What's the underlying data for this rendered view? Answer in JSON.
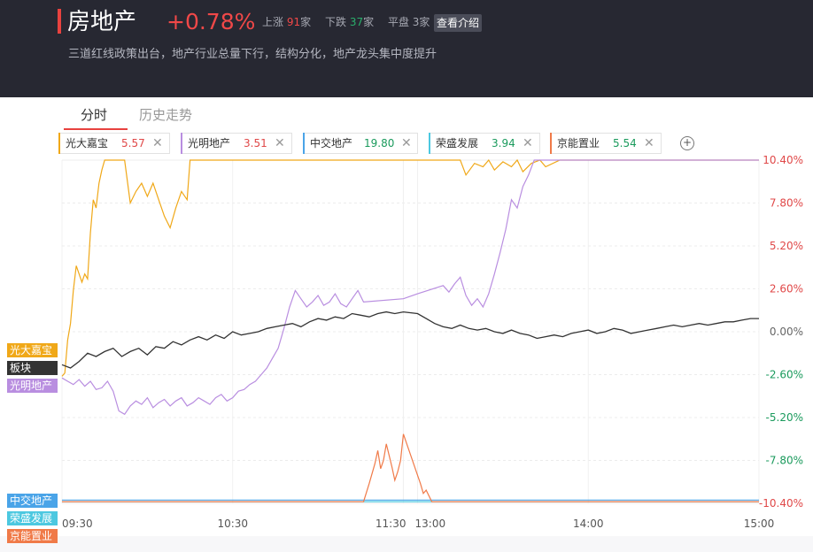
{
  "header": {
    "title": "房地产",
    "change": "+0.78%",
    "up_label": "上涨",
    "up_count": "91",
    "down_label": "下跌",
    "down_count": "37",
    "flat_label": "平盘",
    "flat_count": "3",
    "unit": "家",
    "intro_button": "查看介绍",
    "description": "三道红线政策出台，地产行业总量下行，结构分化，地产龙头集中度提升"
  },
  "tabs": [
    {
      "label": "分时",
      "active": true
    },
    {
      "label": "历史走势",
      "active": false
    }
  ],
  "stocks": [
    {
      "name": "光大嘉宝",
      "value": "5.57",
      "color": "#f0a818",
      "value_color": "#e04848"
    },
    {
      "name": "光明地产",
      "value": "3.51",
      "color": "#b98ee0",
      "value_color": "#e04848"
    },
    {
      "name": "中交地产",
      "value": "19.80",
      "color": "#4aa4e8",
      "value_color": "#1a9a5c"
    },
    {
      "name": "荣盛发展",
      "value": "3.94",
      "color": "#4cc8e0",
      "value_color": "#1a9a5c"
    },
    {
      "name": "京能置业",
      "value": "5.54",
      "color": "#f07a48",
      "value_color": "#1a9a5c"
    }
  ],
  "icons": {
    "close": "close-icon",
    "add": "add-circle-icon"
  },
  "left_tags": [
    {
      "label": "光大嘉宝",
      "color": "#f0a818",
      "y": -1.5
    },
    {
      "label": "板块",
      "color": "#333333",
      "y": -2.9
    },
    {
      "label": "光明地产",
      "color": "#b98ee0",
      "y": -4.2
    },
    {
      "label": "中交地产",
      "color": "#4aa4e8",
      "y": -9.75
    },
    {
      "label": "荣盛发展",
      "color": "#4cc8e0",
      "y": -11.5
    },
    {
      "label": "京能置业",
      "color": "#f07a48",
      "y": -13.2
    }
  ],
  "chart_data": {
    "type": "line",
    "ylim": [
      -10.4,
      10.4
    ],
    "y_ticks": [
      {
        "value": 10.4,
        "label": "10.40%",
        "color": "#e04848"
      },
      {
        "value": 7.8,
        "label": "7.80%",
        "color": "#e04848"
      },
      {
        "value": 5.2,
        "label": "5.20%",
        "color": "#e04848"
      },
      {
        "value": 2.6,
        "label": "2.60%",
        "color": "#e04848"
      },
      {
        "value": 0,
        "label": "0.00%",
        "color": "#666666"
      },
      {
        "value": -2.6,
        "label": "-2.60%",
        "color": "#1a9a5c"
      },
      {
        "value": -5.2,
        "label": "-5.20%",
        "color": "#1a9a5c"
      },
      {
        "value": -7.8,
        "label": "-7.80%",
        "color": "#1a9a5c"
      },
      {
        "value": -10.4,
        "label": "-10.40%",
        "color": "#e04848"
      }
    ],
    "x_ticks": [
      {
        "t": 0,
        "label": "09:30"
      },
      {
        "t": 60,
        "label": "10:30"
      },
      {
        "t": 120,
        "label": "11:30"
      },
      {
        "t": 125,
        "label": "13:00"
      },
      {
        "t": 185,
        "label": "14:00"
      },
      {
        "t": 245,
        "label": "15:00"
      }
    ],
    "xlim": [
      0,
      245
    ],
    "series": [
      {
        "name": "光大嘉宝",
        "color": "#f0a818",
        "x": [
          0,
          1,
          2,
          3,
          4,
          5,
          6,
          7,
          8,
          9,
          10,
          11,
          12,
          13,
          14,
          15,
          16,
          17,
          18,
          19,
          20,
          22,
          24,
          26,
          28,
          30,
          32,
          34,
          36,
          38,
          40,
          42,
          44,
          45,
          60,
          100,
          120,
          125,
          140,
          142,
          145,
          148,
          150,
          152,
          155,
          158,
          160,
          162,
          165,
          168,
          170,
          175,
          180,
          185,
          190,
          200,
          245
        ],
        "y": [
          -2.7,
          -2.5,
          -0.5,
          0.5,
          2.5,
          4.0,
          3.5,
          3.0,
          3.5,
          3.2,
          6.0,
          8.0,
          7.5,
          9.0,
          9.8,
          10.4,
          10.4,
          10.4,
          10.4,
          10.4,
          10.4,
          10.4,
          7.8,
          8.5,
          9.0,
          8.2,
          9.0,
          8.0,
          7.0,
          6.3,
          7.5,
          8.5,
          8.0,
          10.4,
          10.4,
          10.4,
          10.4,
          10.4,
          10.4,
          9.5,
          10.2,
          10.0,
          10.4,
          9.8,
          10.3,
          10.0,
          10.4,
          9.7,
          10.2,
          10.4,
          10.0,
          10.4,
          10.4,
          10.4,
          10.4,
          10.4,
          10.4
        ]
      },
      {
        "name": "光明地产",
        "color": "#b98ee0",
        "x": [
          0,
          2,
          4,
          6,
          8,
          10,
          12,
          14,
          16,
          18,
          20,
          22,
          24,
          26,
          28,
          30,
          32,
          34,
          36,
          38,
          40,
          42,
          44,
          46,
          48,
          50,
          52,
          54,
          56,
          58,
          60,
          62,
          64,
          66,
          68,
          70,
          72,
          74,
          76,
          78,
          80,
          82,
          84,
          86,
          88,
          90,
          92,
          94,
          96,
          98,
          100,
          102,
          104,
          106,
          120,
          125,
          134,
          136,
          138,
          140,
          142,
          144,
          146,
          148,
          150,
          152,
          154,
          156,
          158,
          160,
          162,
          164,
          166,
          168,
          170,
          172,
          174,
          176,
          178,
          180,
          182,
          184,
          186,
          188,
          190,
          192,
          194,
          196,
          198,
          200,
          202,
          245
        ],
        "y": [
          -2.8,
          -3.0,
          -3.2,
          -2.9,
          -3.3,
          -3.0,
          -3.5,
          -3.4,
          -3.0,
          -3.6,
          -4.8,
          -5.0,
          -4.5,
          -4.2,
          -4.4,
          -4.0,
          -4.6,
          -4.3,
          -4.1,
          -4.5,
          -4.2,
          -4.0,
          -4.5,
          -4.3,
          -4.0,
          -4.2,
          -4.4,
          -4.0,
          -3.8,
          -4.2,
          -4.0,
          -3.6,
          -3.5,
          -3.2,
          -3.0,
          -2.6,
          -2.2,
          -1.6,
          -1.0,
          0.2,
          1.5,
          2.5,
          2.0,
          1.5,
          1.8,
          2.2,
          1.6,
          1.8,
          2.3,
          1.7,
          1.5,
          2.0,
          2.5,
          1.8,
          2.0,
          2.3,
          2.8,
          2.4,
          2.9,
          3.3,
          2.2,
          1.6,
          2.0,
          1.5,
          2.3,
          3.5,
          4.8,
          6.2,
          8.0,
          7.5,
          8.8,
          9.5,
          10.4,
          10.4,
          10.4,
          10.4,
          10.4,
          10.4,
          10.4,
          10.4,
          10.4,
          10.4,
          10.4,
          10.4,
          10.4,
          10.4,
          10.4,
          10.4,
          10.4,
          10.4,
          10.4,
          10.4
        ]
      },
      {
        "name": "板块",
        "color": "#333333",
        "x": [
          0,
          3,
          6,
          9,
          12,
          15,
          18,
          21,
          24,
          27,
          30,
          33,
          36,
          39,
          42,
          45,
          48,
          51,
          54,
          57,
          60,
          63,
          66,
          69,
          72,
          75,
          78,
          81,
          84,
          87,
          90,
          93,
          96,
          99,
          102,
          105,
          108,
          111,
          114,
          117,
          120,
          125,
          128,
          131,
          134,
          137,
          140,
          143,
          146,
          149,
          152,
          155,
          158,
          161,
          164,
          167,
          170,
          173,
          176,
          179,
          182,
          185,
          188,
          191,
          194,
          197,
          200,
          203,
          206,
          209,
          212,
          215,
          218,
          221,
          224,
          227,
          230,
          233,
          236,
          239,
          242,
          245
        ],
        "y": [
          -2.0,
          -2.2,
          -1.8,
          -1.3,
          -1.5,
          -1.2,
          -1.0,
          -1.5,
          -1.2,
          -1.0,
          -1.4,
          -0.9,
          -1.0,
          -0.6,
          -0.8,
          -0.5,
          -0.3,
          -0.5,
          -0.2,
          -0.4,
          0.0,
          -0.2,
          -0.1,
          0.0,
          0.2,
          0.3,
          0.4,
          0.5,
          0.3,
          0.6,
          0.8,
          0.7,
          0.9,
          0.8,
          1.1,
          1.0,
          0.9,
          1.1,
          1.2,
          1.1,
          1.2,
          1.1,
          0.8,
          0.5,
          0.3,
          0.2,
          0.4,
          0.2,
          0.1,
          0.2,
          0.0,
          -0.1,
          0.1,
          -0.1,
          -0.2,
          -0.4,
          -0.3,
          -0.2,
          -0.3,
          -0.1,
          0.0,
          0.1,
          -0.1,
          0.0,
          0.2,
          0.1,
          -0.1,
          0.0,
          0.1,
          0.2,
          0.3,
          0.4,
          0.3,
          0.4,
          0.5,
          0.4,
          0.5,
          0.6,
          0.6,
          0.7,
          0.8,
          0.8
        ]
      },
      {
        "name": "中交地产",
        "color": "#4aa4e8",
        "x": [
          0,
          245
        ],
        "y": [
          -10.2,
          -10.2
        ]
      },
      {
        "name": "荣盛发展",
        "color": "#4cc8e0",
        "x": [
          0,
          245
        ],
        "y": [
          -10.3,
          -10.3
        ]
      },
      {
        "name": "京能置业",
        "color": "#f07a48",
        "x": [
          0,
          106,
          108,
          110,
          111,
          112,
          113,
          114,
          115,
          116,
          117,
          118,
          119,
          120,
          125,
          126,
          127,
          128,
          130,
          245
        ],
        "y": [
          -10.3,
          -10.3,
          -9.2,
          -8.0,
          -7.2,
          -8.3,
          -7.8,
          -6.8,
          -7.5,
          -8.2,
          -9.0,
          -8.5,
          -7.8,
          -6.2,
          -8.7,
          -9.2,
          -9.8,
          -9.6,
          -10.3,
          -10.3
        ]
      }
    ]
  }
}
